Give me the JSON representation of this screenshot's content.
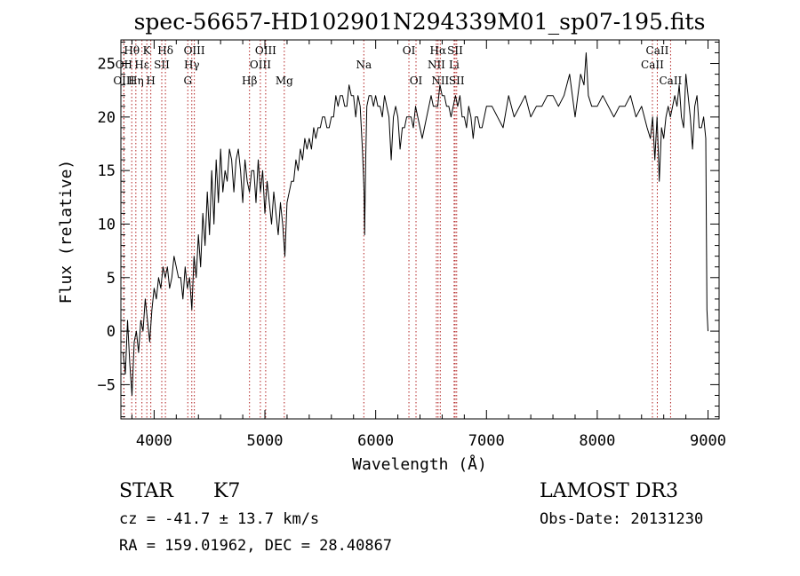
{
  "chart_data": {
    "type": "line",
    "title": "spec-56657-HD102901N294339M01_sp07-195.fits",
    "xlabel": "Wavelength (Å)",
    "ylabel": "Flux (relative)",
    "xlim": [
      3700,
      9100
    ],
    "ylim": [
      -8.2,
      27.2
    ],
    "xticks": [
      4000,
      5000,
      6000,
      7000,
      8000,
      9000
    ],
    "yticks": [
      -5,
      0,
      5,
      10,
      15,
      20,
      25
    ],
    "xminor_step": 200,
    "yminor_step": 1,
    "grid": false,
    "series": [
      {
        "name": "spectrum",
        "x": [
          3720,
          3740,
          3760,
          3780,
          3800,
          3820,
          3840,
          3860,
          3880,
          3900,
          3920,
          3940,
          3960,
          3980,
          4000,
          4020,
          4040,
          4060,
          4080,
          4100,
          4120,
          4140,
          4160,
          4180,
          4200,
          4220,
          4240,
          4260,
          4280,
          4300,
          4320,
          4340,
          4360,
          4380,
          4400,
          4420,
          4440,
          4460,
          4480,
          4500,
          4520,
          4540,
          4560,
          4580,
          4600,
          4620,
          4640,
          4660,
          4680,
          4700,
          4720,
          4740,
          4760,
          4780,
          4800,
          4820,
          4840,
          4860,
          4880,
          4900,
          4920,
          4940,
          4960,
          4980,
          5000,
          5020,
          5040,
          5060,
          5080,
          5100,
          5120,
          5140,
          5160,
          5180,
          5200,
          5220,
          5240,
          5260,
          5280,
          5300,
          5320,
          5340,
          5360,
          5380,
          5400,
          5420,
          5440,
          5460,
          5480,
          5500,
          5520,
          5540,
          5560,
          5580,
          5600,
          5620,
          5640,
          5660,
          5680,
          5700,
          5720,
          5740,
          5760,
          5780,
          5800,
          5820,
          5840,
          5860,
          5880,
          5895,
          5900,
          5910,
          5920,
          5940,
          5960,
          5980,
          6000,
          6020,
          6040,
          6060,
          6080,
          6100,
          6120,
          6140,
          6160,
          6180,
          6200,
          6220,
          6240,
          6260,
          6280,
          6300,
          6320,
          6340,
          6360,
          6380,
          6400,
          6420,
          6440,
          6460,
          6480,
          6500,
          6520,
          6540,
          6560,
          6580,
          6600,
          6620,
          6640,
          6660,
          6680,
          6700,
          6720,
          6740,
          6760,
          6780,
          6800,
          6820,
          6840,
          6860,
          6880,
          6900,
          6920,
          6940,
          6960,
          6980,
          7000,
          7050,
          7100,
          7150,
          7200,
          7250,
          7300,
          7350,
          7400,
          7450,
          7500,
          7550,
          7600,
          7650,
          7700,
          7750,
          7800,
          7850,
          7880,
          7900,
          7920,
          7950,
          8000,
          8050,
          8100,
          8150,
          8200,
          8250,
          8300,
          8350,
          8400,
          8450,
          8480,
          8500,
          8520,
          8540,
          8560,
          8580,
          8600,
          8620,
          8640,
          8660,
          8680,
          8700,
          8720,
          8740,
          8760,
          8780,
          8800,
          8820,
          8840,
          8860,
          8880,
          8900,
          8920,
          8940,
          8960,
          8980,
          8990,
          9000
        ],
        "y": [
          -2,
          -4,
          1,
          -3,
          -6,
          -1,
          0,
          -2,
          1,
          0,
          3,
          1,
          -1,
          2,
          4,
          3,
          5,
          4,
          6,
          5,
          6,
          4,
          5,
          7,
          6,
          5,
          5,
          3,
          6,
          4,
          5,
          2,
          7,
          5,
          9,
          6,
          11,
          8,
          13,
          9,
          15,
          10,
          16,
          12,
          17,
          13,
          15,
          14,
          17,
          16,
          13,
          16,
          17,
          15,
          12,
          16,
          14,
          13,
          15,
          15,
          12,
          16,
          13,
          15,
          11,
          14,
          12,
          10,
          13,
          11,
          9,
          12,
          10,
          7,
          12,
          13,
          14,
          14,
          16,
          15,
          17,
          16,
          18,
          17,
          18,
          17,
          19,
          18,
          19,
          19,
          20,
          20,
          19,
          19,
          20,
          20,
          22,
          21,
          22,
          22,
          21,
          21,
          23,
          22,
          22,
          20,
          22,
          21,
          17,
          13,
          9,
          16,
          21,
          22,
          22,
          21,
          22,
          21,
          21,
          20,
          22,
          21,
          20,
          16,
          20,
          21,
          20,
          17,
          19,
          19,
          20,
          20,
          20,
          19,
          21,
          20,
          19,
          18,
          19,
          20,
          21,
          22,
          21,
          21,
          21,
          23,
          22,
          22,
          21,
          21,
          20,
          21,
          22,
          21,
          22,
          20,
          20,
          19,
          21,
          20,
          18,
          20,
          20,
          19,
          19,
          20,
          21,
          21,
          20,
          19,
          22,
          20,
          21,
          22,
          20,
          21,
          21,
          22,
          22,
          21,
          22,
          24,
          20,
          24,
          23,
          26,
          22,
          21,
          21,
          22,
          21,
          20,
          21,
          21,
          22,
          20,
          21,
          19,
          18,
          20,
          16,
          20,
          14,
          19,
          18,
          20,
          21,
          20,
          21,
          22,
          21,
          23,
          20,
          19,
          24,
          22,
          20,
          17,
          21,
          22,
          19,
          19,
          20,
          18,
          2,
          0
        ]
      }
    ],
    "lines": [
      {
        "label": "Hθ",
        "wave": 3798,
        "row": 0
      },
      {
        "label": "OII",
        "wave": 3727,
        "row": 1
      },
      {
        "label": "OIII",
        "wave": 3727,
        "row": 2
      },
      {
        "label": "K",
        "wave": 3934,
        "row": 0
      },
      {
        "label": "H",
        "wave": 3970,
        "row": 2
      },
      {
        "label": "Hη",
        "wave": 3835,
        "row": 2
      },
      {
        "label": "Hε",
        "wave": 3890,
        "row": 1
      },
      {
        "label": "SII",
        "wave": 4069,
        "row": 1
      },
      {
        "label": "Hδ",
        "wave": 4102,
        "row": 0
      },
      {
        "label": "OIII",
        "wave": 4363,
        "row": 0
      },
      {
        "label": "Hγ",
        "wave": 4340,
        "row": 1
      },
      {
        "label": "G",
        "wave": 4304,
        "row": 2
      },
      {
        "label": "Hβ",
        "wave": 4861,
        "row": 2
      },
      {
        "label": "OIII",
        "wave": 5007,
        "row": 0
      },
      {
        "label": "OIII",
        "wave": 4959,
        "row": 1
      },
      {
        "label": "Mg",
        "wave": 5175,
        "row": 2
      },
      {
        "label": "Na",
        "wave": 5893,
        "row": 1
      },
      {
        "label": "OI",
        "wave": 6300,
        "row": 0
      },
      {
        "label": "OI",
        "wave": 6364,
        "row": 2
      },
      {
        "label": "Hα",
        "wave": 6563,
        "row": 0
      },
      {
        "label": "NII",
        "wave": 6548,
        "row": 1
      },
      {
        "label": "NII",
        "wave": 6583,
        "row": 2
      },
      {
        "label": "SII",
        "wave": 6717,
        "row": 0
      },
      {
        "label": "Li",
        "wave": 6708,
        "row": 1
      },
      {
        "label": "SII",
        "wave": 6731,
        "row": 2
      },
      {
        "label": "CaII",
        "wave": 8542,
        "row": 0
      },
      {
        "label": "CaII",
        "wave": 8498,
        "row": 1
      },
      {
        "label": "CaII",
        "wave": 8662,
        "row": 2
      }
    ]
  },
  "info": {
    "class_label": "STAR",
    "subclass": "K7",
    "survey": "LAMOST DR3",
    "cz": "cz = -41.7 ± 13.7 km/s",
    "obs_date": "Obs-Date: 20131230",
    "coords": "RA = 159.01962, DEC =  28.40867"
  },
  "colors": {
    "line_marker": "#b22222",
    "axis": "#000000",
    "spectrum": "#000000"
  }
}
